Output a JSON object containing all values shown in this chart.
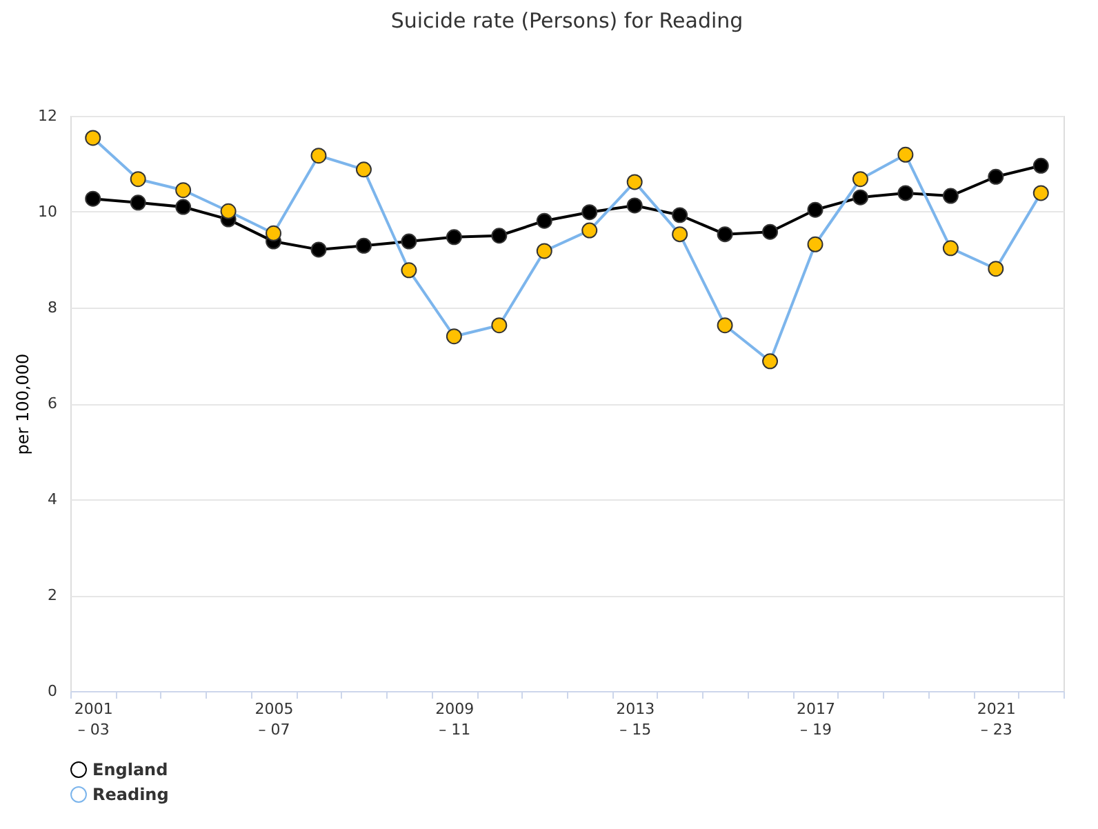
{
  "chart_data": {
    "type": "line",
    "title": "Suicide rate (Persons) for Reading",
    "ylabel": "per 100,000",
    "categories": [
      "2001\n– 03",
      null,
      null,
      null,
      "2005\n– 07",
      null,
      null,
      null,
      "2009\n– 11",
      null,
      null,
      null,
      "2013\n– 15",
      null,
      null,
      null,
      "2017\n– 19",
      null,
      null,
      null,
      "2021\n– 23",
      null
    ],
    "series": [
      {
        "name": "England",
        "color": "#000000",
        "values": [
          10.27,
          10.19,
          10.1,
          9.84,
          9.38,
          9.21,
          9.29,
          9.38,
          9.47,
          9.5,
          9.81,
          9.99,
          10.13,
          9.93,
          9.53,
          9.58,
          10.04,
          10.3,
          10.39,
          10.33,
          10.73,
          10.96
        ]
      },
      {
        "name": "Reading",
        "color": "#7cb5ec",
        "values": [
          11.54,
          10.68,
          10.45,
          10.01,
          9.55,
          11.17,
          10.88,
          8.78,
          7.4,
          7.63,
          9.18,
          9.61,
          10.62,
          9.53,
          7.63,
          6.88,
          9.32,
          10.68,
          11.19,
          9.24,
          8.81,
          10.39
        ]
      }
    ],
    "ylim": [
      0,
      12
    ],
    "yticks": [
      0,
      2,
      4,
      6,
      8,
      10,
      12
    ],
    "grid": "y",
    "legend": "bottom",
    "marker": "circle"
  }
}
